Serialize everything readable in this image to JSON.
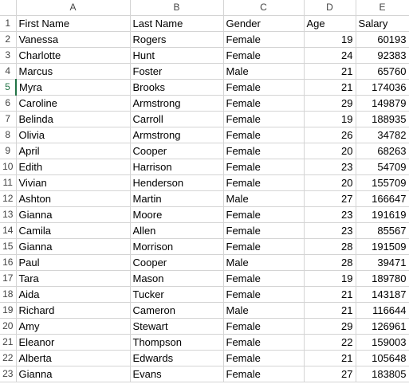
{
  "sheet": {
    "columns": [
      "A",
      "B",
      "C",
      "D",
      "E"
    ],
    "active_row": "5",
    "rows": [
      {
        "n": "1",
        "cells": [
          "First Name",
          "Last Name",
          "Gender",
          "Age",
          "Salary"
        ]
      },
      {
        "n": "2",
        "cells": [
          "Vanessa",
          "Rogers",
          "Female",
          "19",
          "60193"
        ]
      },
      {
        "n": "3",
        "cells": [
          "Charlotte",
          "Hunt",
          "Female",
          "24",
          "92383"
        ]
      },
      {
        "n": "4",
        "cells": [
          "Marcus",
          "Foster",
          "Male",
          "21",
          "65760"
        ]
      },
      {
        "n": "5",
        "cells": [
          "Myra",
          "Brooks",
          "Female",
          "21",
          "174036"
        ]
      },
      {
        "n": "6",
        "cells": [
          "Caroline",
          "Armstrong",
          "Female",
          "29",
          "149879"
        ]
      },
      {
        "n": "7",
        "cells": [
          "Belinda",
          "Carroll",
          "Female",
          "19",
          "188935"
        ]
      },
      {
        "n": "8",
        "cells": [
          "Olivia",
          "Armstrong",
          "Female",
          "26",
          "34782"
        ]
      },
      {
        "n": "9",
        "cells": [
          "April",
          "Cooper",
          "Female",
          "20",
          "68263"
        ]
      },
      {
        "n": "10",
        "cells": [
          "Edith",
          "Harrison",
          "Female",
          "23",
          "54709"
        ]
      },
      {
        "n": "11",
        "cells": [
          "Vivian",
          "Henderson",
          "Female",
          "20",
          "155709"
        ]
      },
      {
        "n": "12",
        "cells": [
          "Ashton",
          "Martin",
          "Male",
          "27",
          "166647"
        ]
      },
      {
        "n": "13",
        "cells": [
          "Gianna",
          "Moore",
          "Female",
          "23",
          "191619"
        ]
      },
      {
        "n": "14",
        "cells": [
          "Camila",
          "Allen",
          "Female",
          "23",
          "85567"
        ]
      },
      {
        "n": "15",
        "cells": [
          "Gianna",
          "Morrison",
          "Female",
          "28",
          "191509"
        ]
      },
      {
        "n": "16",
        "cells": [
          "Paul",
          "Cooper",
          "Male",
          "28",
          "39471"
        ]
      },
      {
        "n": "17",
        "cells": [
          "Tara",
          "Mason",
          "Female",
          "19",
          "189780"
        ]
      },
      {
        "n": "18",
        "cells": [
          "Aida",
          "Tucker",
          "Female",
          "21",
          "143187"
        ]
      },
      {
        "n": "19",
        "cells": [
          "Richard",
          "Cameron",
          "Male",
          "21",
          "116644"
        ]
      },
      {
        "n": "20",
        "cells": [
          "Amy",
          "Stewart",
          "Female",
          "29",
          "126961"
        ]
      },
      {
        "n": "21",
        "cells": [
          "Eleanor",
          "Thompson",
          "Female",
          "22",
          "159003"
        ]
      },
      {
        "n": "22",
        "cells": [
          "Alberta",
          "Edwards",
          "Female",
          "21",
          "105648"
        ]
      },
      {
        "n": "23",
        "cells": [
          "Gianna",
          "Evans",
          "Female",
          "27",
          "183805"
        ]
      }
    ]
  }
}
